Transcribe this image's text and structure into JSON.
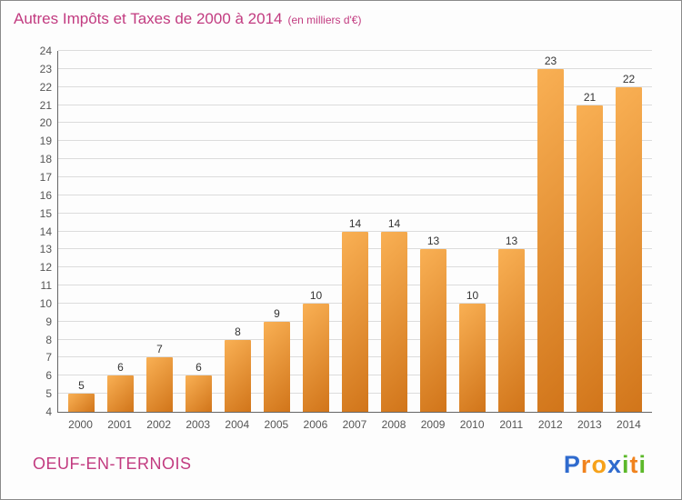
{
  "title": "Autres Impôts et Taxes de 2000 à 2014",
  "subtitle": "(en milliers d'€)",
  "footer": {
    "company": "OEUF-EN-TERNOIS"
  },
  "logo": {
    "name": "Proxiti",
    "letters": [
      {
        "ch": "P",
        "color": "#2f6bce"
      },
      {
        "ch": "r",
        "color": "#f0831e"
      },
      {
        "ch": "o",
        "color": "#f6a21b"
      },
      {
        "ch": "x",
        "color": "#2f6bce"
      },
      {
        "ch": "i",
        "color": "#5cb82a"
      },
      {
        "ch": "t",
        "color": "#f0831e"
      },
      {
        "ch": "i",
        "color": "#5cb82a"
      }
    ]
  },
  "colors": {
    "title": "#c23b80",
    "bar_light": "#f9b054",
    "bar_dark": "#d1751a",
    "grid": "#dcdcdc",
    "axis": "#666666",
    "tick_text": "#555555",
    "value_text": "#333333"
  },
  "chart_data": {
    "type": "bar",
    "title": "Autres Impôts et Taxes de 2000 à 2014",
    "subtitle": "(en milliers d'€)",
    "categories": [
      "2000",
      "2001",
      "2002",
      "2003",
      "2004",
      "2005",
      "2006",
      "2007",
      "2008",
      "2009",
      "2010",
      "2011",
      "2012",
      "2013",
      "2014"
    ],
    "values": [
      5,
      6,
      7,
      6,
      8,
      9,
      10,
      14,
      14,
      13,
      10,
      13,
      23,
      21,
      22
    ],
    "xlabel": "",
    "ylabel": "",
    "ylim": [
      4,
      24
    ],
    "ytick_step": 1,
    "grid": true,
    "legend": false,
    "value_labels": true
  }
}
